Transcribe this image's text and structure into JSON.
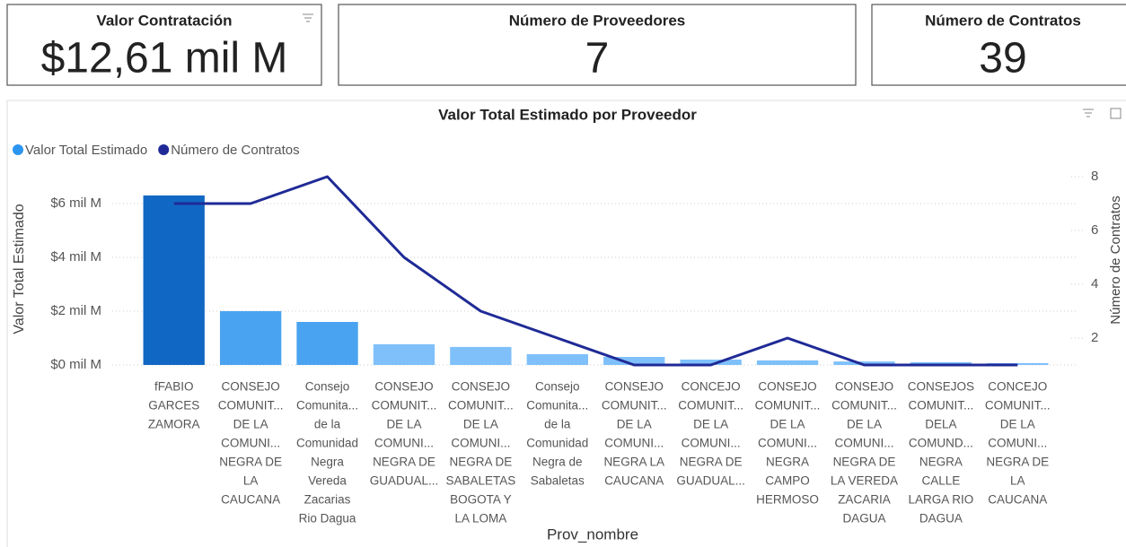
{
  "cards": [
    {
      "title": "Valor Contratación",
      "value": "$12,61 mil M"
    },
    {
      "title": "Número de Proveedores",
      "value": 7
    },
    {
      "title": "Número de Contratos",
      "value": 39
    }
  ],
  "chart_data": {
    "type": "bar_line",
    "title": "Valor Total Estimado por Proveedor",
    "x_label": "Prov_nombre",
    "y_label": "Valor Total Estimado",
    "y2_label": "Número de Contratos",
    "categories": [
      [
        "fFABIO",
        "GARCES",
        "ZAMORA"
      ],
      [
        "CONSEJO",
        "COMUNIT...",
        "DE LA",
        "COMUNI...",
        "NEGRA DE",
        "LA",
        "CAUCANA"
      ],
      [
        "Consejo",
        "Comunita...",
        "de la",
        "Comunidad",
        "Negra",
        "Vereda",
        "Zacarias",
        "Rio Dagua"
      ],
      [
        "CONSEJO",
        "COMUNIT...",
        "DE LA",
        "COMUNI...",
        "NEGRA DE",
        "GUADUAL..."
      ],
      [
        "CONSEJO",
        "COMUNIT...",
        "DE LA",
        "COMUNI...",
        "NEGRA DE",
        "SABALETAS",
        "BOGOTA Y",
        "LA LOMA"
      ],
      [
        "Consejo",
        "Comunita...",
        "de la",
        "Comunidad",
        "Negra de",
        "Sabaletas"
      ],
      [
        "CONSEJO",
        "COMUNIT...",
        "DE LA",
        "COMUNI...",
        "NEGRA LA",
        "CAUCANA"
      ],
      [
        "CONCEJO",
        "COMUNIT...",
        "DE LA",
        "COMUNI...",
        "NEGRA DE",
        "GUADUAL..."
      ],
      [
        "CONSEJO",
        "COMUNIT...",
        "DE LA",
        "COMUNI...",
        "NEGRA",
        "CAMPO",
        "HERMOSO"
      ],
      [
        "CONSEJO",
        "COMUNIT...",
        "DE LA",
        "COMUNI...",
        "NEGRA DE",
        "LA VEREDA",
        "ZACARIA",
        "DAGUA"
      ],
      [
        "CONSEJOS",
        "COMUNIT...",
        "DELA",
        "COMUND...",
        "NEGRA",
        "CALLE",
        "LARGA RIO",
        "DAGUA"
      ],
      [
        "CONCEJO",
        "COMUNIT...",
        "DE LA",
        "COMUNI...",
        "NEGRA DE",
        "LA",
        "CAUCANA"
      ]
    ],
    "series": [
      {
        "name": "Valor Total Estimado",
        "color": "#2b95f0",
        "type": "bar",
        "bar_colors": [
          "#1168c4",
          "#4aa3f0",
          "#4aa3f0",
          "#7fc0fb",
          "#7fc0fb",
          "#7fc0fb",
          "#7fc0fb",
          "#7fc0fb",
          "#7fc0fb",
          "#7fc0fb",
          "#7fc0fb",
          "#7fc0fb"
        ],
        "values": [
          6.3,
          2.0,
          1.6,
          0.77,
          0.67,
          0.4,
          0.3,
          0.2,
          0.17,
          0.13,
          0.1,
          0.07
        ]
      },
      {
        "name": "Número de Contratos",
        "color": "#1f2a96",
        "type": "line",
        "axis": "y2",
        "values": [
          7,
          7,
          8,
          5,
          3,
          2,
          1,
          1,
          2,
          1,
          1,
          1
        ]
      }
    ],
    "ylim": [
      0,
      7
    ],
    "yticks": [
      {
        "value": 0,
        "label": "$0 mil M"
      },
      {
        "value": 2,
        "label": "$2 mil M"
      },
      {
        "value": 4,
        "label": "$4 mil M"
      },
      {
        "value": 6,
        "label": "$6 mil M"
      }
    ],
    "y2lim": [
      1,
      8
    ],
    "y2ticks": [
      2,
      4,
      6,
      8
    ],
    "grid": true,
    "legend": "top-left"
  }
}
